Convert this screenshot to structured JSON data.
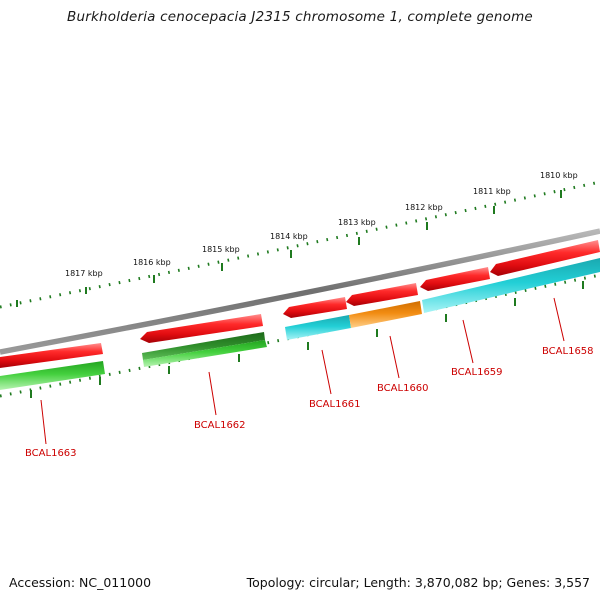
{
  "title": "Burkholderia cenocepacia J2315 chromosome 1, complete genome",
  "footer": {
    "accession": "Accession: NC_011000",
    "summary": "Topology: circular; Length: 3,870,082 bp; Genes: 3,557"
  },
  "colors": {
    "backbone": "#7a7a7a",
    "ruler": "#1f7a1f",
    "forward_gene": "#e8141a",
    "reverse_gene": "#22c9d0",
    "green_gene": "#3ec83a",
    "dark_green_gene": "#2e8b2a",
    "orange_gene": "#f28c12",
    "label": "#cc0000"
  },
  "kbp_ticks": [
    "1817 kbp",
    "1816 kbp",
    "1815 kbp",
    "1814 kbp",
    "1813 kbp",
    "1812 kbp",
    "1811 kbp",
    "1810 kbp"
  ],
  "gene_labels": [
    "BCAL1663",
    "BCAL1662",
    "BCAL1661",
    "BCAL1660",
    "BCAL1659",
    "BCAL1658"
  ]
}
